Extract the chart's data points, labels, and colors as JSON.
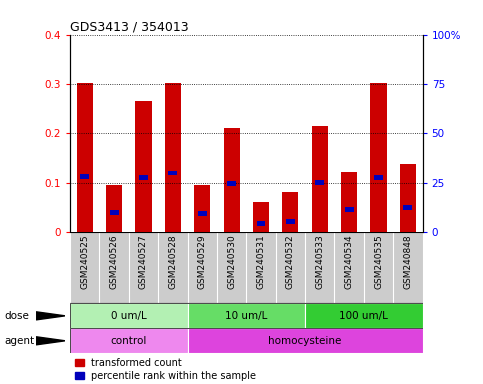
{
  "title": "GDS3413 / 354013",
  "samples": [
    "GSM240525",
    "GSM240526",
    "GSM240527",
    "GSM240528",
    "GSM240529",
    "GSM240530",
    "GSM240531",
    "GSM240532",
    "GSM240533",
    "GSM240534",
    "GSM240535",
    "GSM240848"
  ],
  "red_values": [
    0.302,
    0.095,
    0.265,
    0.303,
    0.095,
    0.212,
    0.062,
    0.082,
    0.215,
    0.122,
    0.303,
    0.138
  ],
  "blue_values": [
    0.113,
    0.04,
    0.11,
    0.12,
    0.038,
    0.098,
    0.017,
    0.022,
    0.1,
    0.046,
    0.11,
    0.05
  ],
  "ylim_left": [
    0,
    0.4
  ],
  "ylim_right": [
    0,
    100
  ],
  "yticks_left": [
    0,
    0.1,
    0.2,
    0.3,
    0.4
  ],
  "yticks_right": [
    0,
    25,
    50,
    75,
    100
  ],
  "ytick_labels_right": [
    "0",
    "25",
    "50",
    "75",
    "100%"
  ],
  "dose_groups": [
    {
      "label": "0 um/L",
      "start": 0,
      "end": 4,
      "color": "#b3f0b3"
    },
    {
      "label": "10 um/L",
      "start": 4,
      "end": 8,
      "color": "#66dd66"
    },
    {
      "label": "100 um/L",
      "start": 8,
      "end": 12,
      "color": "#33cc33"
    }
  ],
  "agent_groups": [
    {
      "label": "control",
      "start": 0,
      "end": 4,
      "color": "#ee88ee"
    },
    {
      "label": "homocysteine",
      "start": 4,
      "end": 12,
      "color": "#dd44dd"
    }
  ],
  "bar_width": 0.55,
  "red_color": "#cc0000",
  "blue_color": "#0000bb",
  "tick_label_bg": "#cccccc",
  "legend_red": "transformed count",
  "legend_blue": "percentile rank within the sample",
  "dose_label": "dose",
  "agent_label": "agent"
}
